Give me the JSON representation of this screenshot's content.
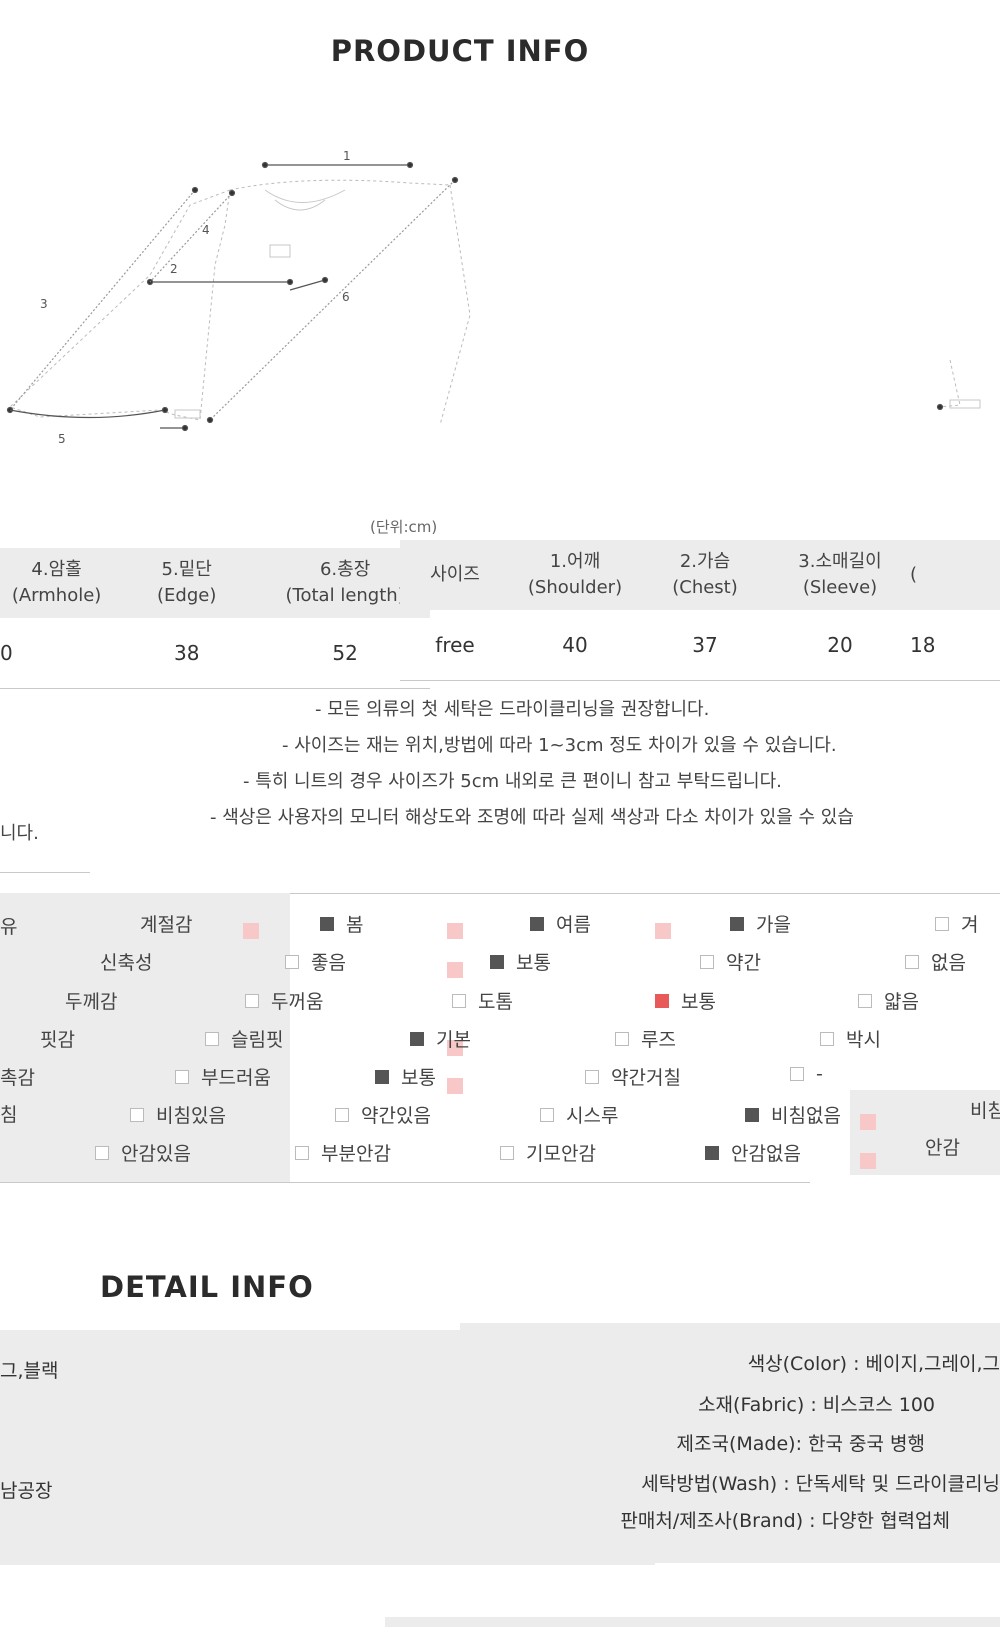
{
  "product_info": {
    "title": "PRODUCT INFO"
  },
  "diagram": {
    "labels": [
      "1",
      "2",
      "3",
      "4",
      "5",
      "6"
    ]
  },
  "unit": "(단위:cm)",
  "size_table_left": {
    "headers": [
      {
        "ko": "4.암홀",
        "en": "(Armhole)"
      },
      {
        "ko": "5.밑단",
        "en": "(Edge)"
      },
      {
        "ko": "6.총장",
        "en": "(Total length)"
      }
    ],
    "partial_value": "0",
    "values": [
      "38",
      "52"
    ]
  },
  "size_table_right": {
    "headers": [
      {
        "ko": "사이즈",
        "en": ""
      },
      {
        "ko": "1.어깨",
        "en": "(Shoulder)"
      },
      {
        "ko": "2.가슴",
        "en": "(Chest)"
      },
      {
        "ko": "3.소매길이",
        "en": "(Sleeve)"
      },
      {
        "ko": "",
        "en": "("
      }
    ],
    "values": [
      "free",
      "40",
      "37",
      "20",
      "18"
    ]
  },
  "notes": [
    "- 모든 의류의 첫 세탁은 드라이클리닝을 권장합니다.",
    "- 사이즈는 재는 위치,방법에 따라 1~3cm 정도 차이가 있을 수 있습니다.",
    "- 특히 니트의 경우 사이즈가 5cm 내외로 큰 편이니 참고 부탁드립니다.",
    "- 색상은 사용자의 모니터 해상도와 조명에 따라 실제 색상과 다소 차이가 있을 수 있습",
    "니다."
  ],
  "feel": {
    "rows": [
      {
        "left_fragment": "유",
        "label": "계절감",
        "options": [
          "봄",
          "여름",
          "가을",
          "겨"
        ]
      },
      {
        "left_fragment": "",
        "label": "신축성",
        "options": [
          "좋음",
          "보통",
          "약간",
          "없음"
        ]
      },
      {
        "left_fragment": "",
        "label": "두께감",
        "options": [
          "두꺼움",
          "도톰",
          "보통",
          "얇음"
        ]
      },
      {
        "left_fragment": "",
        "label": "핏감",
        "options": [
          "슬림핏",
          "기본",
          "루즈",
          "박시"
        ]
      },
      {
        "left_fragment": "촉감",
        "label": "",
        "options": [
          "부드러움",
          "보통",
          "약간거칠",
          "-"
        ]
      },
      {
        "left_fragment": "침",
        "label": "",
        "options": [
          "비침있음",
          "약간있음",
          "시스루",
          "비침없음"
        ],
        "right_label": "비침"
      },
      {
        "left_fragment": "",
        "label": "",
        "options": [
          "안감있음",
          "부분안감",
          "기모안감",
          "안감없음"
        ],
        "right_label": "안감"
      }
    ]
  },
  "detail_info": {
    "title": "DETAIL INFO",
    "left_fragments": [
      "그,블랙",
      "남공장"
    ],
    "lines": [
      "색상(Color) : 베이지,그레이,그",
      "소재(Fabric) : 비스코스 100",
      "제조국(Made): 한국 중국 병행",
      "세탁방법(Wash) : 단독세탁 및 드라이클리닝",
      "판매처/제조사(Brand) : 다양한 협력업체"
    ]
  }
}
